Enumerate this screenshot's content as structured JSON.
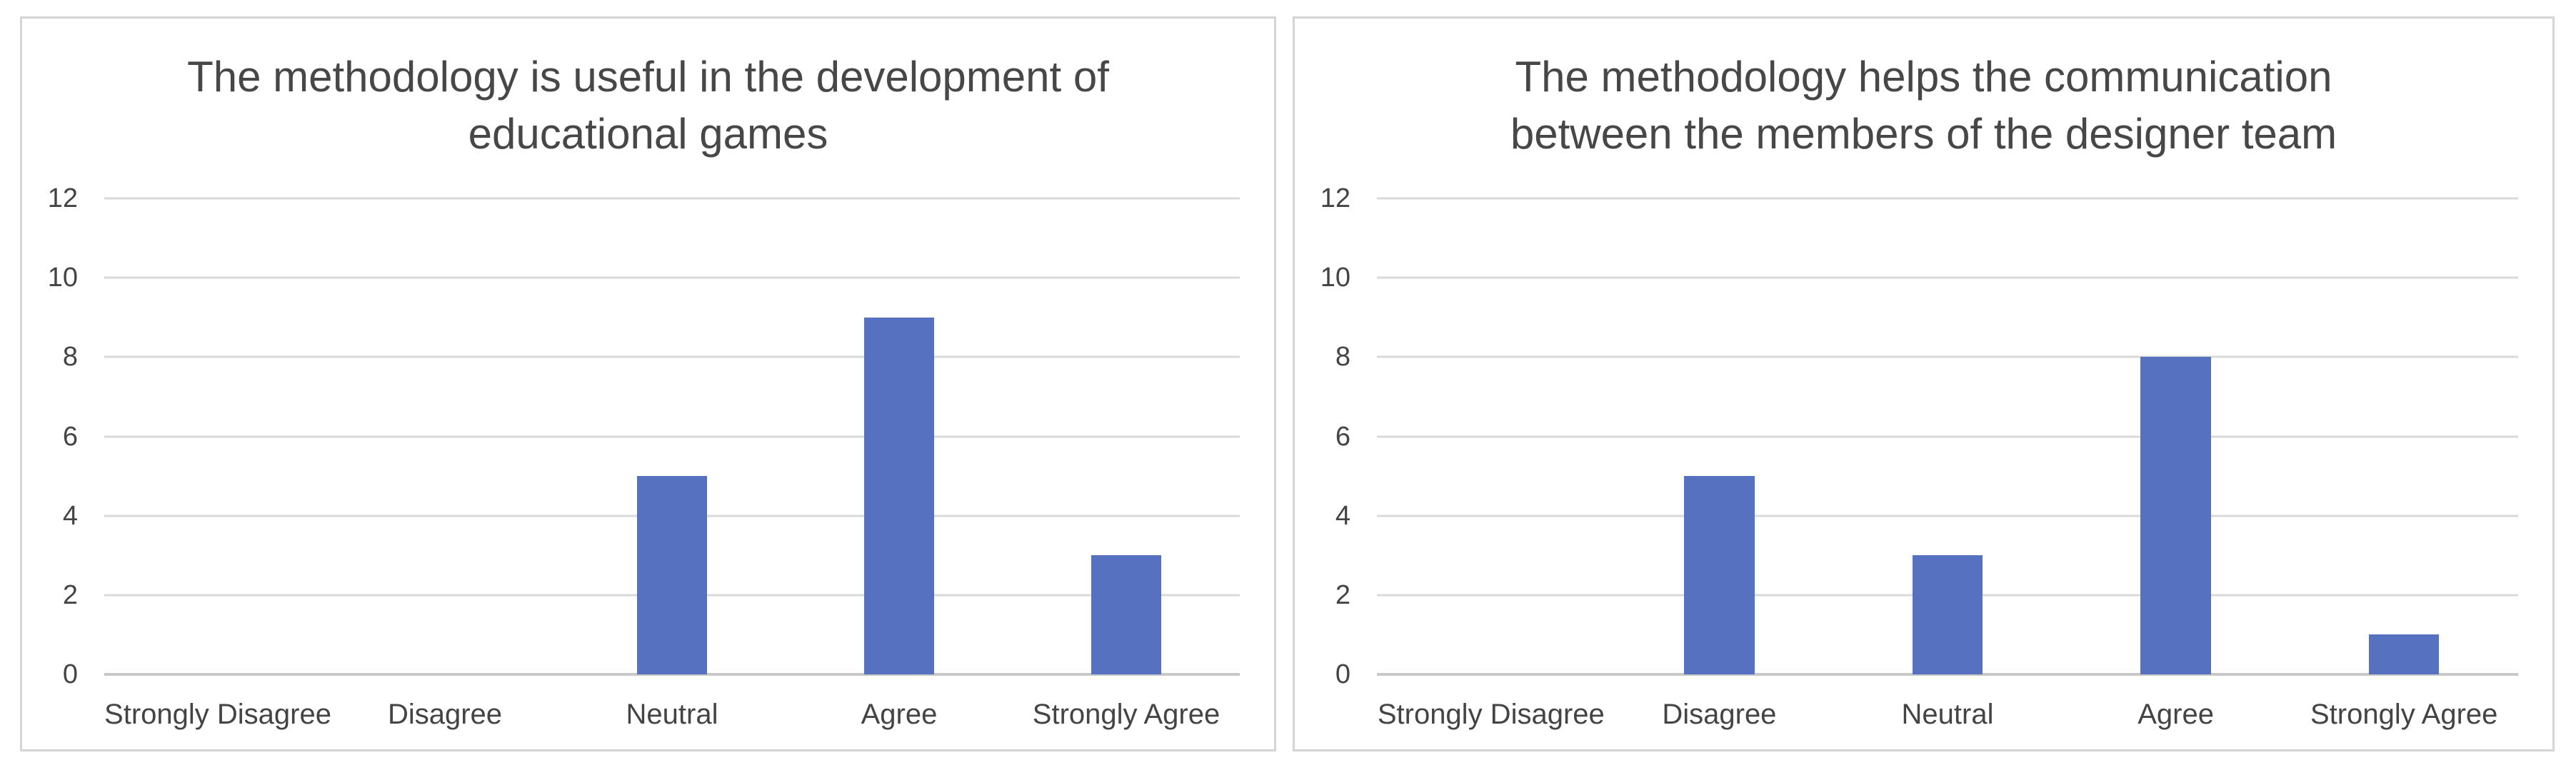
{
  "page": {
    "background": "#FFFFFF",
    "panel_border_color": "#D5D5D5"
  },
  "chart_data": [
    {
      "type": "bar",
      "title": "The methodology is useful in the development of educational games",
      "title_lines": [
        "The methodology is useful in the development of",
        "educational games"
      ],
      "categories": [
        "Strongly Disagree",
        "Disagree",
        "Neutral",
        "Agree",
        "Strongly Agree"
      ],
      "values": [
        0,
        0,
        5,
        9,
        3
      ],
      "xlabel": "",
      "ylabel": "",
      "ylim": [
        0,
        12
      ],
      "yticks": [
        0,
        2,
        4,
        6,
        8,
        10,
        12
      ],
      "grid": true,
      "legend": "none",
      "bar_color": "#5571BF",
      "gridline_color": "#D9D9D9",
      "axis_line_color": "#C8C8C8",
      "text_color": "#444444",
      "title_color": "#474747"
    },
    {
      "type": "bar",
      "title": "The methodology helps the communication between the members of the designer team",
      "title_lines": [
        "The methodology helps the communication",
        "between the members of the designer team"
      ],
      "categories": [
        "Strongly Disagree",
        "Disagree",
        "Neutral",
        "Agree",
        "Strongly Agree"
      ],
      "values": [
        0,
        5,
        3,
        8,
        1
      ],
      "xlabel": "",
      "ylabel": "",
      "ylim": [
        0,
        12
      ],
      "yticks": [
        0,
        2,
        4,
        6,
        8,
        10,
        12
      ],
      "grid": true,
      "legend": "none",
      "bar_color": "#5571BF",
      "gridline_color": "#D9D9D9",
      "axis_line_color": "#C8C8C8",
      "text_color": "#444444",
      "title_color": "#474747"
    }
  ]
}
